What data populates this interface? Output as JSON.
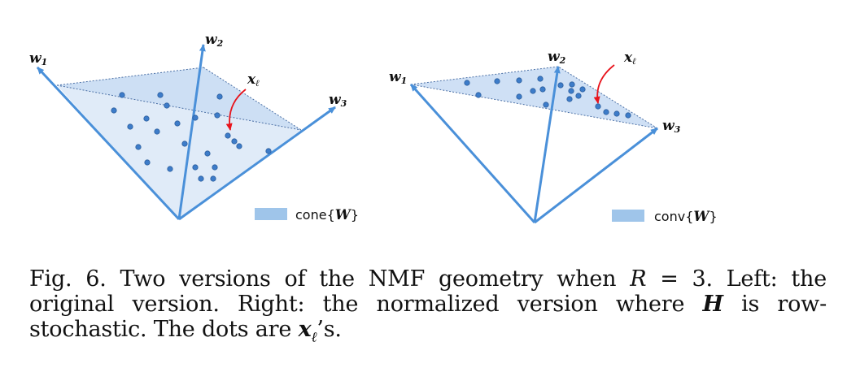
{
  "figure": {
    "left_panel": {
      "labels": {
        "w1": "w",
        "w1_sub": "1",
        "w2": "w",
        "w2_sub": "2",
        "w3": "w",
        "w3_sub": "3",
        "x": "x",
        "x_sub": "ℓ"
      },
      "legend": {
        "prefix": "cone{",
        "symbol": "W",
        "suffix": "}"
      }
    },
    "right_panel": {
      "labels": {
        "w1": "w",
        "w1_sub": "1",
        "w2": "w",
        "w2_sub": "2",
        "w3": "w",
        "w3_sub": "3",
        "x": "x",
        "x_sub": "ℓ"
      },
      "legend": {
        "prefix": "conv{",
        "symbol": "W",
        "suffix": "}"
      }
    },
    "colors": {
      "arrow": "#4a90d9",
      "fill": "#cfe0f5",
      "dot": "#3d7cc9",
      "annotation_arrow": "#e8141c",
      "legend_swatch": "#9fc5ea"
    }
  },
  "caption": {
    "fig_label": "Fig. 6.",
    "text_1": " Two versions of the NMF geometry when ",
    "math_R": "R",
    "text_2": " = 3. Left: the original version. Right: the normalized version where ",
    "math_H": "H",
    "text_3": " is row-stochastic. The dots are ",
    "math_x": "x",
    "math_x_sub": "ℓ",
    "text_4": "’s."
  }
}
